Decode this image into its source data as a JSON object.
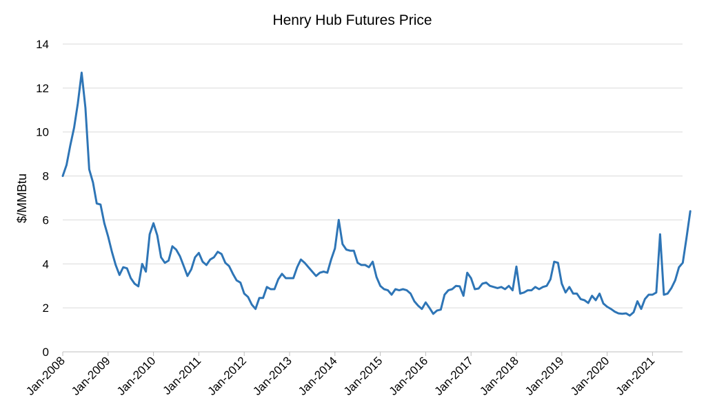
{
  "chart_data": {
    "type": "line",
    "title": "Henry Hub Futures Price",
    "xlabel": "",
    "ylabel": "$/MMBtu",
    "ylim": [
      0,
      14
    ],
    "yticks": [
      "0",
      "2",
      "4",
      "6",
      "8",
      "10",
      "12",
      "14"
    ],
    "xticks": [
      "Jan-2008",
      "Jan-2009",
      "Jan-2010",
      "Jan-2011",
      "Jan-2012",
      "Jan-2013",
      "Jan-2014",
      "Jan-2015",
      "Jan-2016",
      "Jan-2017",
      "Jan-2018",
      "Jan-2019",
      "Jan-2020",
      "Jan-2021"
    ],
    "x_start": "Jan-2008",
    "x_frequency": "monthly",
    "grid": true,
    "legend": "none",
    "series": [
      {
        "color": "#2e75b6",
        "values": [
          8.0,
          8.5,
          9.4,
          10.2,
          11.3,
          12.7,
          11.1,
          8.3,
          7.7,
          6.75,
          6.7,
          5.85,
          5.25,
          4.55,
          3.95,
          3.5,
          3.85,
          3.8,
          3.35,
          3.1,
          2.98,
          4.0,
          3.65,
          5.35,
          5.85,
          5.3,
          4.3,
          4.05,
          4.15,
          4.8,
          4.65,
          4.35,
          3.9,
          3.45,
          3.75,
          4.3,
          4.5,
          4.1,
          3.95,
          4.2,
          4.3,
          4.55,
          4.45,
          4.05,
          3.9,
          3.55,
          3.25,
          3.15,
          2.65,
          2.5,
          2.15,
          1.95,
          2.45,
          2.45,
          2.95,
          2.85,
          2.85,
          3.3,
          3.55,
          3.35,
          3.35,
          3.35,
          3.85,
          4.2,
          4.05,
          3.85,
          3.65,
          3.45,
          3.6,
          3.65,
          3.6,
          4.2,
          4.7,
          6.0,
          4.9,
          4.65,
          4.6,
          4.6,
          4.05,
          3.95,
          3.95,
          3.85,
          4.1,
          3.4,
          3.0,
          2.85,
          2.8,
          2.6,
          2.85,
          2.8,
          2.85,
          2.8,
          2.65,
          2.3,
          2.1,
          1.95,
          2.25,
          2.0,
          1.73,
          1.88,
          1.92,
          2.6,
          2.8,
          2.85,
          3.0,
          2.98,
          2.55,
          3.6,
          3.35,
          2.85,
          2.88,
          3.1,
          3.15,
          3.0,
          2.95,
          2.9,
          2.95,
          2.85,
          3.0,
          2.8,
          3.88,
          2.65,
          2.7,
          2.8,
          2.8,
          2.95,
          2.85,
          2.95,
          3.0,
          3.3,
          4.1,
          4.05,
          3.1,
          2.7,
          2.95,
          2.65,
          2.65,
          2.4,
          2.35,
          2.22,
          2.55,
          2.35,
          2.65,
          2.2,
          2.05,
          1.95,
          1.83,
          1.75,
          1.73,
          1.75,
          1.65,
          1.8,
          2.3,
          1.95,
          2.4,
          2.6,
          2.6,
          2.7,
          5.35,
          2.6,
          2.65,
          2.9,
          3.25,
          3.85,
          4.05,
          5.2,
          6.4
        ]
      }
    ]
  }
}
